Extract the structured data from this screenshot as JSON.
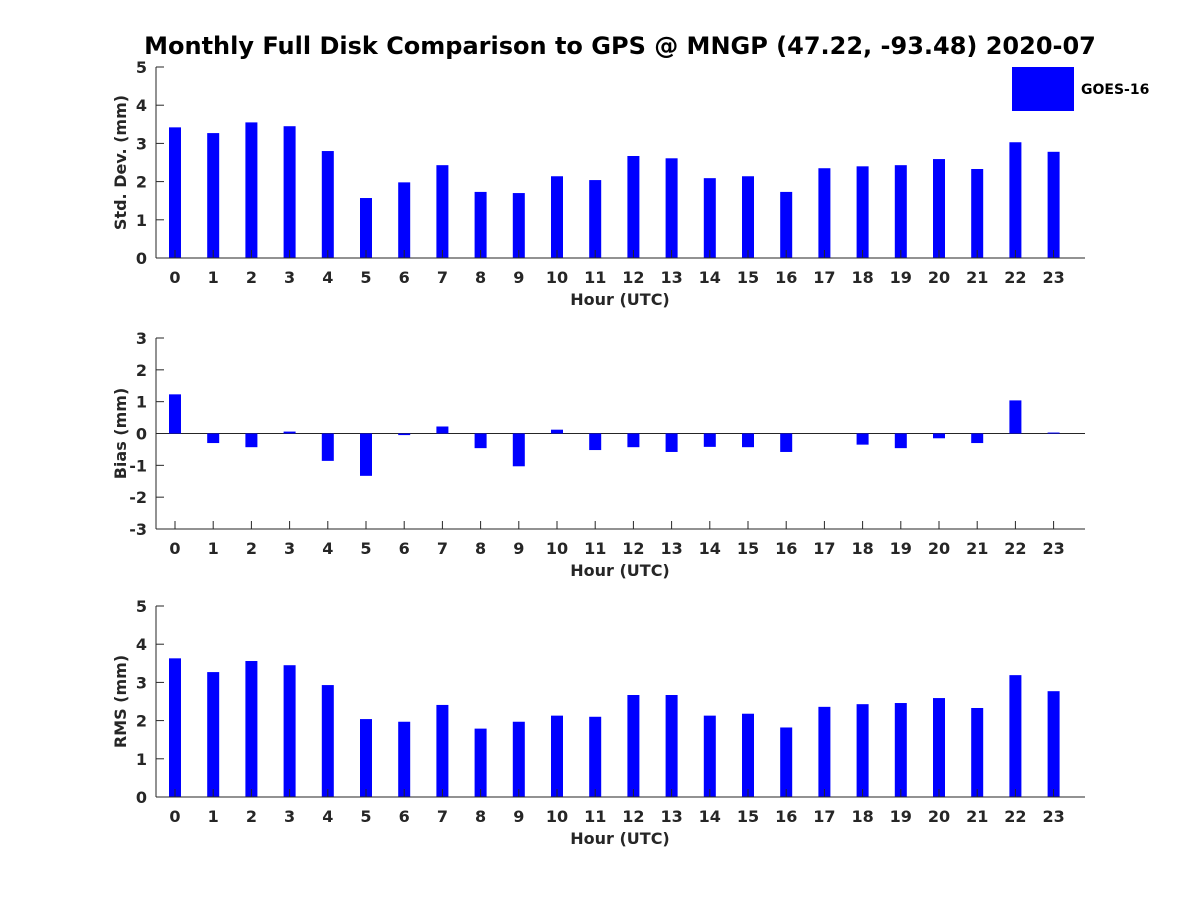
{
  "chart_data": {
    "type": "bar",
    "title": "Monthly Full Disk Comparison to GPS @ MNGP (47.22, -93.48) 2020-07",
    "series_name": "GOES-16",
    "bar_color": "#0000ff",
    "axis_color": "#262626",
    "legend_position": "top-right",
    "categories": [
      "0",
      "1",
      "2",
      "3",
      "4",
      "5",
      "6",
      "7",
      "8",
      "9",
      "10",
      "11",
      "12",
      "13",
      "14",
      "15",
      "16",
      "17",
      "18",
      "19",
      "20",
      "21",
      "22",
      "23"
    ],
    "panels": [
      {
        "name": "std-dev",
        "xlabel": "Hour (UTC)",
        "ylabel": "Std. Dev. (mm)",
        "ylim": [
          0,
          5
        ],
        "yticks": [
          "0",
          "1",
          "2",
          "3",
          "4",
          "5"
        ],
        "values": [
          3.42,
          3.27,
          3.55,
          3.45,
          2.8,
          1.57,
          1.98,
          2.43,
          1.73,
          1.7,
          2.14,
          2.04,
          2.67,
          2.61,
          2.09,
          2.14,
          1.73,
          2.35,
          2.4,
          2.43,
          2.59,
          2.33,
          3.03,
          2.78
        ]
      },
      {
        "name": "bias",
        "xlabel": "Hour (UTC)",
        "ylabel": "Bias (mm)",
        "ylim": [
          -3,
          3
        ],
        "yticks": [
          "-3",
          "-2",
          "-1",
          "0",
          "1",
          "2",
          "3"
        ],
        "values": [
          1.23,
          -0.3,
          -0.43,
          0.06,
          -0.86,
          -1.33,
          -0.05,
          0.22,
          -0.46,
          -1.03,
          0.12,
          -0.52,
          -0.43,
          -0.58,
          -0.42,
          -0.43,
          -0.58,
          0.0,
          -0.35,
          -0.46,
          -0.15,
          -0.3,
          1.04,
          0.03
        ]
      },
      {
        "name": "rms",
        "xlabel": "Hour (UTC)",
        "ylabel": "RMS (mm)",
        "ylim": [
          0,
          5
        ],
        "yticks": [
          "0",
          "1",
          "2",
          "3",
          "4",
          "5"
        ],
        "values": [
          3.63,
          3.27,
          3.56,
          3.45,
          2.93,
          2.04,
          1.97,
          2.41,
          1.79,
          1.97,
          2.13,
          2.1,
          2.67,
          2.67,
          2.13,
          2.18,
          1.82,
          2.36,
          2.43,
          2.46,
          2.59,
          2.33,
          3.19,
          2.77
        ]
      }
    ]
  }
}
